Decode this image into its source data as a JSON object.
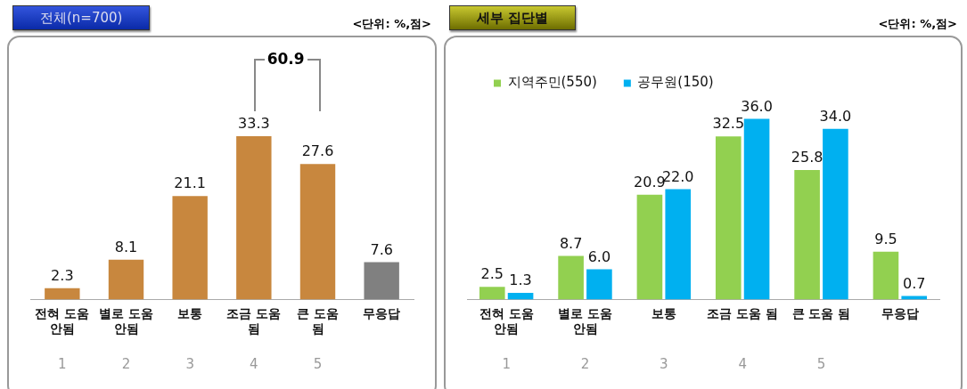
{
  "chart_data": [
    {
      "type": "bar",
      "title": "전체(n=700)",
      "subtitle": "<단위: %,점>",
      "categories": [
        "전혀 도움 안됨",
        "별로 도움 안됨",
        "보통",
        "조금 도움 됨",
        "큰 도움 됨",
        "무응답"
      ],
      "values": [
        2.3,
        8.1,
        21.1,
        33.3,
        27.6,
        7.6
      ],
      "value_labels": [
        "2.3",
        "8.1",
        "21.1",
        "33.3",
        "27.6",
        "7.6"
      ],
      "colors": [
        "#c8873e",
        "#c8873e",
        "#c8873e",
        "#c8873e",
        "#c8873e",
        "#808080"
      ],
      "legend": false,
      "grid": false,
      "tick_labels": "x",
      "annotations": [
        "60.9",
        "1",
        "2",
        "3",
        "4",
        "5"
      ]
    },
    {
      "type": "bar",
      "title": "세부 집단별",
      "subtitle": "<단위: %,점>",
      "categories": [
        "전혀 도움 안됨",
        "별로 도움 안됨",
        "보통",
        "조금 도움 됨",
        "큰 도움 됨",
        "무응답"
      ],
      "series": [
        {
          "name": "지역주민(550)",
          "color": "#92d050",
          "values": [
            2.5,
            8.7,
            20.9,
            32.5,
            25.8,
            9.5
          ],
          "value_labels": [
            "2.5",
            "8.7",
            "20.9",
            "32.5",
            "25.8",
            "9.5"
          ]
        },
        {
          "name": "공무원(150)",
          "color": "#00b0f0",
          "values": [
            1.3,
            6.0,
            22.0,
            36.0,
            34.0,
            0.7
          ],
          "value_labels": [
            "1.3",
            "6.0",
            "22.0",
            "36.0",
            "34.0",
            "0.7"
          ]
        }
      ],
      "legend": "top left",
      "grid": false,
      "tick_labels": "x",
      "annotations": [
        "1",
        "2",
        "3",
        "4",
        "5"
      ]
    }
  ]
}
